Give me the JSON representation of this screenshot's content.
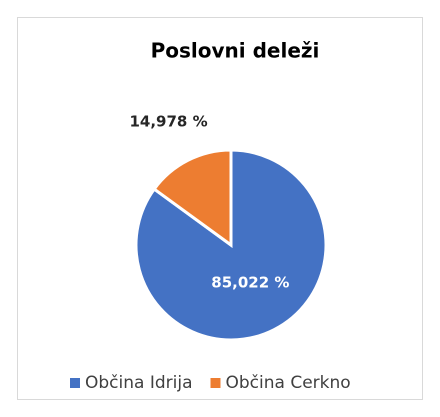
{
  "chart_data": {
    "type": "pie",
    "title": "Poslovni deleži",
    "categories": [
      "Občina Idrija",
      "Občina Cerkno"
    ],
    "values": [
      85.022,
      14.978
    ],
    "value_labels": [
      "85,022 %",
      "14,978 %"
    ],
    "colors": [
      "#4472c4",
      "#ed7d31"
    ],
    "legend": "bottom"
  }
}
